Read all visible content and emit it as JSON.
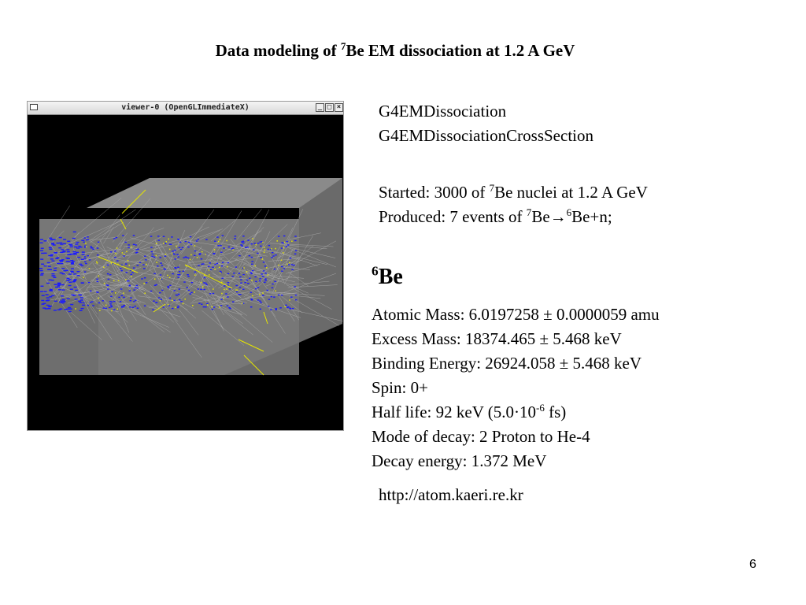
{
  "slide": {
    "title_part1": "Data modeling of ",
    "title_sup": "7",
    "title_part2": "Be EM dissociation at 1.2 A GeV",
    "page_number": "6"
  },
  "viewer": {
    "window_title": "viewer-0 (OpenGLImmediateX)",
    "buttons": {
      "minimize": "_",
      "maximize": "□",
      "close": "×"
    }
  },
  "classes": {
    "line1": "G4EMDissociation",
    "line2": "G4EMDissociationCrossSection"
  },
  "run": {
    "started_pre": "Started: 3000 of ",
    "started_sup": "7",
    "started_post": "Be nuclei at 1.2 A GeV",
    "produced_pre": "Produced: 7 events of ",
    "produced_sup1": "7",
    "produced_mid": "Be",
    "produced_arrow": "→",
    "produced_sup2": "6",
    "produced_post": "Be+n;"
  },
  "nuclide": {
    "heading_sup": "6",
    "heading_text": "Be",
    "atomic_mass": "Atomic Mass: 6.0197258 ± 0.0000059 amu",
    "excess_mass": "Excess Mass: 18374.465 ± 5.468 keV",
    "binding_energy": "Binding Energy: 26924.058 ± 5.468 keV",
    "spin": "Spin: 0+",
    "half_life_pre": "Half life: 92 keV (5.0·10",
    "half_life_sup": "-6",
    "half_life_post": " fs)",
    "decay_mode": "Mode of decay: 2 Proton to He-4",
    "decay_energy": "Decay energy: 1.372 MeV",
    "source_url": "http://atom.kaeri.re.kr"
  },
  "colors": {
    "beam": "#1a1aff",
    "tracks": "#b4b4b4",
    "secondaries": "#e6e600",
    "box": "#7a7a7a"
  }
}
